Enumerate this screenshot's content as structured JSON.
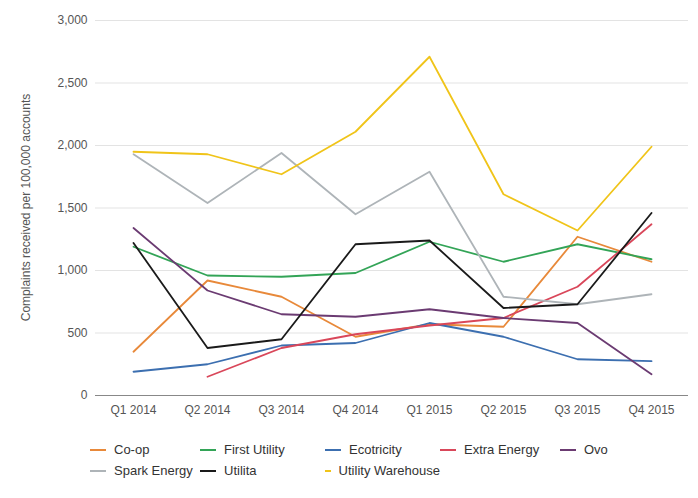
{
  "chart_data": {
    "type": "line",
    "y_label": "Complaints received per 100,000 accounts",
    "categories": [
      "Q1 2014",
      "Q2 2014",
      "Q3 2014",
      "Q4 2014",
      "Q1 2015",
      "Q2 2015",
      "Q3 2015",
      "Q4 2015"
    ],
    "series": [
      {
        "name": "Co-op",
        "color": "#e8893a",
        "values": [
          350,
          920,
          790,
          470,
          570,
          550,
          1270,
          1070
        ]
      },
      {
        "name": "First Utility",
        "color": "#33a457",
        "values": [
          1190,
          960,
          950,
          980,
          1230,
          1070,
          1210,
          1090
        ]
      },
      {
        "name": "Ecotricity",
        "color": "#3c6fb0",
        "values": [
          190,
          250,
          400,
          420,
          580,
          470,
          290,
          275
        ]
      },
      {
        "name": "Extra Energy",
        "color": "#d9475a",
        "values": [
          null,
          150,
          380,
          490,
          560,
          620,
          870,
          1370
        ]
      },
      {
        "name": "Ovo",
        "color": "#6b3b72",
        "values": [
          1340,
          840,
          650,
          630,
          690,
          620,
          580,
          170
        ]
      },
      {
        "name": "Spark Energy",
        "color": "#aeb4b8",
        "values": [
          1930,
          1540,
          1940,
          1450,
          1790,
          790,
          730,
          810
        ]
      },
      {
        "name": "Utilita",
        "color": "#1a1a1a",
        "values": [
          1220,
          380,
          450,
          1210,
          1240,
          700,
          730,
          1460
        ]
      },
      {
        "name": "Utility Warehouse",
        "color": "#f0c419",
        "values": [
          1950,
          1930,
          1770,
          2110,
          2710,
          1610,
          1320,
          1990
        ]
      }
    ],
    "ylim": [
      0,
      3000
    ],
    "yticks": [
      0,
      500,
      1000,
      1500,
      2000,
      2500,
      3000
    ],
    "grid": true,
    "legend": "bottom"
  }
}
